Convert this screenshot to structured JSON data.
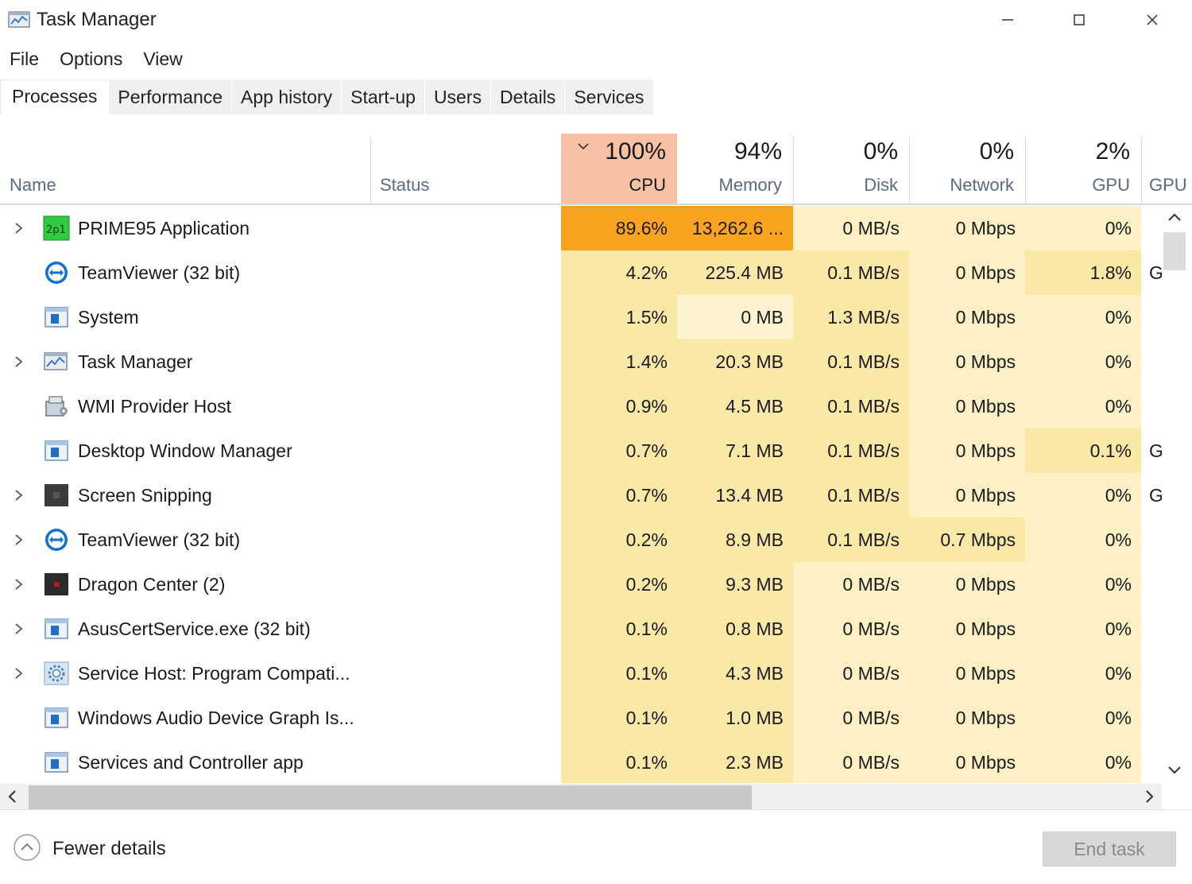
{
  "window": {
    "title": "Task Manager",
    "controls": {
      "minimize": "minimize",
      "maximize": "maximize",
      "close": "close"
    }
  },
  "menu": [
    "File",
    "Options",
    "View"
  ],
  "tabs": [
    {
      "label": "Processes",
      "active": true
    },
    {
      "label": "Performance",
      "active": false
    },
    {
      "label": "App history",
      "active": false
    },
    {
      "label": "Start-up",
      "active": false
    },
    {
      "label": "Users",
      "active": false
    },
    {
      "label": "Details",
      "active": false
    },
    {
      "label": "Services",
      "active": false
    }
  ],
  "columns": {
    "name": {
      "label": "Name"
    },
    "status": {
      "label": "Status"
    },
    "cpu": {
      "percent": "100%",
      "label": "CPU",
      "sorted": "descending"
    },
    "memory": {
      "percent": "94%",
      "label": "Memory"
    },
    "disk": {
      "percent": "0%",
      "label": "Disk"
    },
    "network": {
      "percent": "0%",
      "label": "Network"
    },
    "gpu": {
      "percent": "2%",
      "label": "GPU"
    },
    "gpu_engine": {
      "label": "GPU"
    }
  },
  "processes": [
    {
      "name": "PRIME95 Application",
      "icon": "prime95-icon",
      "expandable": true,
      "cpu": "89.6%",
      "memory": "13,262.6 ...",
      "disk": "0 MB/s",
      "network": "0 Mbps",
      "gpu": "0%",
      "gpu_engine": "",
      "heat": {
        "cpu": 5,
        "memory": 5,
        "disk": 1,
        "network": 1,
        "gpu": 1
      }
    },
    {
      "name": "TeamViewer (32 bit)",
      "icon": "teamviewer-icon",
      "expandable": false,
      "cpu": "4.2%",
      "memory": "225.4 MB",
      "disk": "0.1 MB/s",
      "network": "0 Mbps",
      "gpu": "1.8%",
      "gpu_engine": "G",
      "heat": {
        "cpu": 2,
        "memory": 2,
        "disk": 2,
        "network": 1,
        "gpu": 2
      }
    },
    {
      "name": "System",
      "icon": "system-window-icon",
      "expandable": false,
      "cpu": "1.5%",
      "memory": "0 MB",
      "disk": "1.3 MB/s",
      "network": "0 Mbps",
      "gpu": "0%",
      "gpu_engine": "",
      "heat": {
        "cpu": 2,
        "memory": 0,
        "disk": 2,
        "network": 1,
        "gpu": 1
      }
    },
    {
      "name": "Task Manager",
      "icon": "task-manager-icon",
      "expandable": true,
      "cpu": "1.4%",
      "memory": "20.3 MB",
      "disk": "0.1 MB/s",
      "network": "0 Mbps",
      "gpu": "0%",
      "gpu_engine": "",
      "heat": {
        "cpu": 2,
        "memory": 2,
        "disk": 2,
        "network": 1,
        "gpu": 1
      }
    },
    {
      "name": "WMI Provider Host",
      "icon": "wmi-host-icon",
      "expandable": false,
      "cpu": "0.9%",
      "memory": "4.5 MB",
      "disk": "0.1 MB/s",
      "network": "0 Mbps",
      "gpu": "0%",
      "gpu_engine": "",
      "heat": {
        "cpu": 2,
        "memory": 2,
        "disk": 2,
        "network": 1,
        "gpu": 1
      }
    },
    {
      "name": "Desktop Window Manager",
      "icon": "system-window-icon",
      "expandable": false,
      "cpu": "0.7%",
      "memory": "7.1 MB",
      "disk": "0.1 MB/s",
      "network": "0 Mbps",
      "gpu": "0.1%",
      "gpu_engine": "G",
      "heat": {
        "cpu": 2,
        "memory": 2,
        "disk": 2,
        "network": 1,
        "gpu": 2
      }
    },
    {
      "name": "Screen Snipping",
      "icon": "screen-snipping-icon",
      "expandable": true,
      "cpu": "0.7%",
      "memory": "13.4 MB",
      "disk": "0.1 MB/s",
      "network": "0 Mbps",
      "gpu": "0%",
      "gpu_engine": "G",
      "heat": {
        "cpu": 2,
        "memory": 2,
        "disk": 2,
        "network": 1,
        "gpu": 1
      }
    },
    {
      "name": "TeamViewer (32 bit)",
      "icon": "teamviewer-icon",
      "expandable": true,
      "cpu": "0.2%",
      "memory": "8.9 MB",
      "disk": "0.1 MB/s",
      "network": "0.7 Mbps",
      "gpu": "0%",
      "gpu_engine": "",
      "heat": {
        "cpu": 2,
        "memory": 2,
        "disk": 2,
        "network": 2,
        "gpu": 1
      }
    },
    {
      "name": "Dragon Center (2)",
      "icon": "dragon-center-icon",
      "expandable": true,
      "cpu": "0.2%",
      "memory": "9.3 MB",
      "disk": "0 MB/s",
      "network": "0 Mbps",
      "gpu": "0%",
      "gpu_engine": "",
      "heat": {
        "cpu": 2,
        "memory": 2,
        "disk": 1,
        "network": 1,
        "gpu": 1
      }
    },
    {
      "name": "AsusCertService.exe (32 bit)",
      "icon": "system-window-icon",
      "expandable": true,
      "cpu": "0.1%",
      "memory": "0.8 MB",
      "disk": "0 MB/s",
      "network": "0 Mbps",
      "gpu": "0%",
      "gpu_engine": "",
      "heat": {
        "cpu": 2,
        "memory": 2,
        "disk": 1,
        "network": 1,
        "gpu": 1
      }
    },
    {
      "name": "Service Host: Program Compati...",
      "icon": "service-gear-icon",
      "expandable": true,
      "cpu": "0.1%",
      "memory": "4.3 MB",
      "disk": "0 MB/s",
      "network": "0 Mbps",
      "gpu": "0%",
      "gpu_engine": "",
      "heat": {
        "cpu": 2,
        "memory": 2,
        "disk": 1,
        "network": 1,
        "gpu": 1
      }
    },
    {
      "name": "Windows Audio Device Graph Is...",
      "icon": "system-window-icon",
      "expandable": false,
      "cpu": "0.1%",
      "memory": "1.0 MB",
      "disk": "0 MB/s",
      "network": "0 Mbps",
      "gpu": "0%",
      "gpu_engine": "",
      "heat": {
        "cpu": 2,
        "memory": 2,
        "disk": 1,
        "network": 1,
        "gpu": 1
      }
    },
    {
      "name": "Services and Controller app",
      "icon": "system-window-icon",
      "expandable": false,
      "cpu": "0.1%",
      "memory": "2.3 MB",
      "disk": "0 MB/s",
      "network": "0 Mbps",
      "gpu": "0%",
      "gpu_engine": "",
      "heat": {
        "cpu": 2,
        "memory": 2,
        "disk": 1,
        "network": 1,
        "gpu": 1
      }
    }
  ],
  "heat_colors": {
    "0": "#fdf3d0",
    "1": "#fdf0c4",
    "2": "#fae8a6",
    "5": "#f9a31f",
    "header_sorted": "#f7c1a6"
  },
  "footer": {
    "fewer_details": "Fewer details",
    "end_task": "End task",
    "end_task_enabled": false
  }
}
